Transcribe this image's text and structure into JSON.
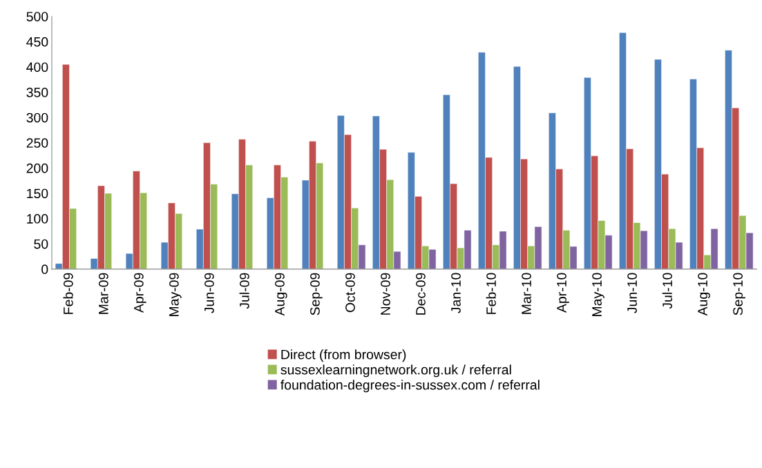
{
  "chart_data": {
    "type": "bar",
    "categories": [
      "Feb-09",
      "Mar-09",
      "Apr-09",
      "May-09",
      "Jun-09",
      "Jul-09",
      "Aug-09",
      "Sep-09",
      "Oct-09",
      "Nov-09",
      "Dec-09",
      "Jan-10",
      "Feb-10",
      "Mar-10",
      "Apr-10",
      "May-10",
      "Jun-10",
      "Jul-10",
      "Aug-10",
      "Sep-10"
    ],
    "series": [
      {
        "color": "#4f81bd",
        "values": [
          11,
          21,
          31,
          53,
          79,
          149,
          141,
          176,
          304,
          303,
          231,
          345,
          429,
          401,
          309,
          379,
          468,
          415,
          376,
          433
        ]
      },
      {
        "name": "Direct (from browser)",
        "color": "#c0504d",
        "values": [
          405,
          165,
          194,
          131,
          250,
          257,
          206,
          253,
          266,
          237,
          144,
          169,
          221,
          218,
          198,
          224,
          238,
          188,
          240,
          319
        ]
      },
      {
        "name": "sussexlearningnetwork.org.uk / referral",
        "color": "#9bbb59",
        "values": [
          120,
          150,
          151,
          110,
          168,
          206,
          182,
          210,
          121,
          177,
          46,
          42,
          48,
          46,
          77,
          96,
          92,
          80,
          28,
          106
        ]
      },
      {
        "name": "foundation-degrees-in-sussex.com / referral",
        "color": "#8064a2",
        "values": [
          null,
          null,
          null,
          null,
          null,
          null,
          null,
          null,
          48,
          35,
          39,
          77,
          75,
          84,
          45,
          67,
          76,
          53,
          80,
          72
        ]
      }
    ],
    "ylim": [
      0,
      500
    ],
    "yticks": [
      0,
      50,
      100,
      150,
      200,
      250,
      300,
      350,
      400,
      450,
      500
    ],
    "grid": false,
    "legend": "bottom"
  }
}
